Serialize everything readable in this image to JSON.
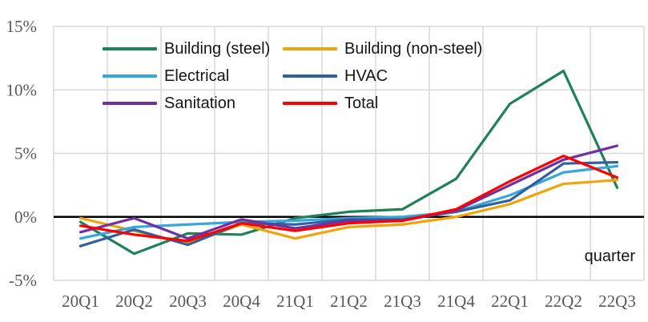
{
  "chart_data": {
    "type": "line",
    "title": "",
    "xlabel": "quarter",
    "ylabel": "",
    "categories": [
      "20Q1",
      "20Q2",
      "20Q3",
      "20Q4",
      "21Q1",
      "21Q2",
      "21Q3",
      "21Q4",
      "22Q1",
      "22Q2",
      "22Q3"
    ],
    "series": [
      {
        "name": "Building (steel)",
        "color": "#1F8159",
        "values": [
          -0.4,
          -2.9,
          -1.3,
          -1.4,
          -0.1,
          0.4,
          0.6,
          3.0,
          8.9,
          11.5,
          2.3
        ]
      },
      {
        "name": "Building (non-steel)",
        "color": "#F0A30A",
        "values": [
          -0.1,
          -1.1,
          -2.1,
          -0.6,
          -1.7,
          -0.8,
          -0.6,
          0.0,
          1.0,
          2.6,
          2.9
        ]
      },
      {
        "name": "Electrical",
        "color": "#36A6DC",
        "values": [
          -1.7,
          -0.8,
          -0.6,
          -0.4,
          -0.3,
          -0.1,
          0.0,
          0.4,
          1.7,
          3.5,
          4.0
        ]
      },
      {
        "name": "HVAC",
        "color": "#30609F",
        "values": [
          -2.3,
          -1.0,
          -2.2,
          -0.5,
          -0.6,
          -0.2,
          -0.2,
          0.4,
          1.3,
          4.2,
          4.3
        ]
      },
      {
        "name": "Sanitation",
        "color": "#7030A0",
        "values": [
          -1.2,
          -0.1,
          -1.7,
          -0.2,
          -0.9,
          -0.3,
          -0.3,
          0.5,
          2.5,
          4.5,
          5.6
        ]
      },
      {
        "name": "Total",
        "color": "#FF0000",
        "values": [
          -0.7,
          -1.4,
          -1.9,
          -0.5,
          -1.1,
          -0.5,
          -0.3,
          0.6,
          2.8,
          4.8,
          3.1
        ]
      }
    ],
    "ylim": [
      -5,
      15
    ],
    "yticks": [
      -5,
      0,
      5,
      10,
      15
    ],
    "ytick_labels": [
      "-5%",
      "0%",
      "5%",
      "10%",
      "15%"
    ],
    "grid": true,
    "zero_line": true,
    "legend_position": "top-inside-two-columns",
    "legend_columns": [
      [
        0,
        2,
        4
      ],
      [
        1,
        3,
        5
      ]
    ],
    "colors": {
      "gridline": "#D9D9D9",
      "zero_line": "#000000",
      "tick_text": "#595959",
      "legend_text": "#151515"
    }
  }
}
